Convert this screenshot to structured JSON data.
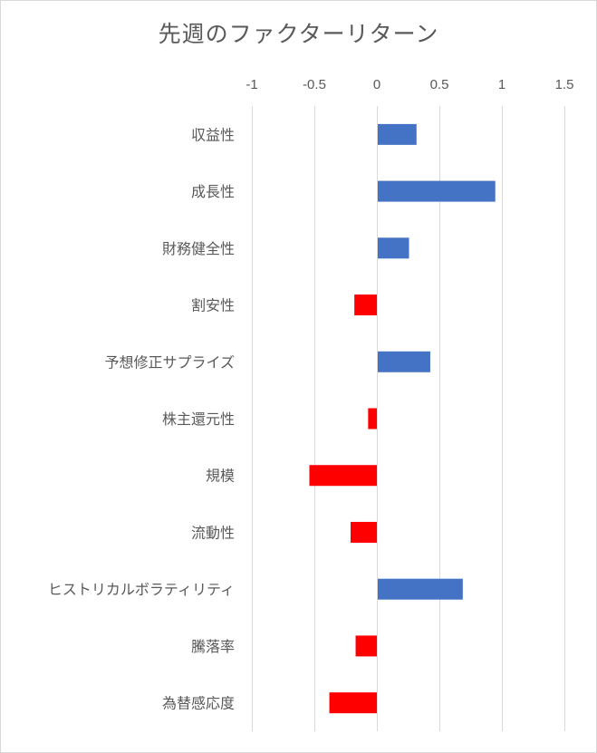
{
  "chart_data": {
    "type": "bar",
    "orientation": "horizontal",
    "title": "先週のファクターリターン",
    "xlim": [
      -1,
      1.5
    ],
    "xticks": [
      "-1",
      "-0.5",
      "0",
      "0.5",
      "1",
      "1.5"
    ],
    "xtick_values": [
      -1,
      -0.5,
      0,
      0.5,
      1,
      1.5
    ],
    "x_axis_position": "top",
    "grid": true,
    "legend": "none",
    "categories": [
      "収益性",
      "成長性",
      "財務健全性",
      "割安性",
      "予想修正サプライズ",
      "株主還元性",
      "規模",
      "流動性",
      "ヒストリカルボラティリティ",
      "騰落率",
      "為替感応度"
    ],
    "values": [
      0.31,
      0.94,
      0.25,
      -0.18,
      0.42,
      -0.07,
      -0.54,
      -0.21,
      0.68,
      -0.17,
      -0.38
    ],
    "colors": {
      "positive": "#4472c4",
      "negative": "#ff0000",
      "grid": "#d9d9d9",
      "text": "#595959"
    }
  }
}
